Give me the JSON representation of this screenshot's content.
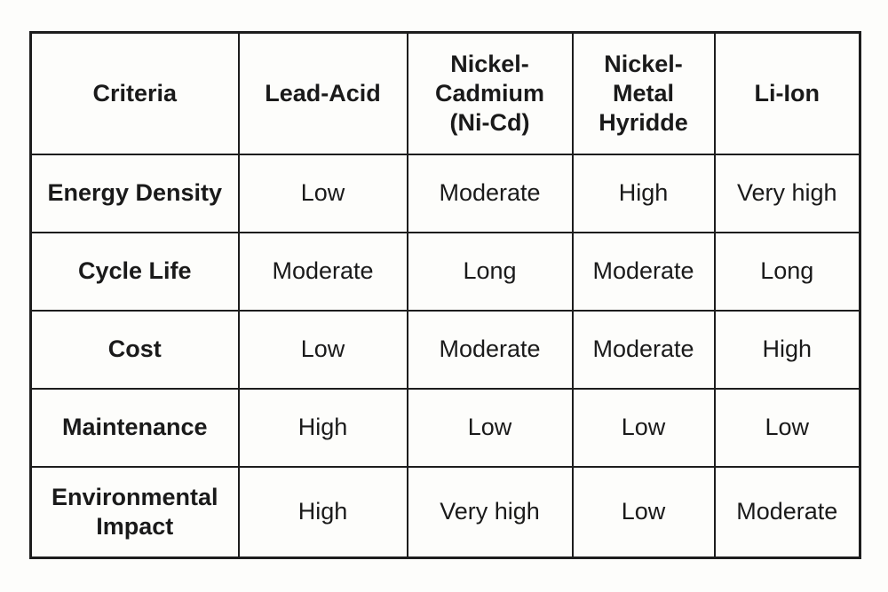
{
  "chart_data": {
    "type": "table",
    "title": "",
    "columns": [
      "Criteria",
      "Lead-Acid",
      "Nickel-Cadmium (Ni-Cd)",
      "Nickel-Metal Hyridde",
      "Li-Ion"
    ],
    "rows": [
      [
        "Energy Density",
        "Low",
        "Moderate",
        "High",
        "Very high"
      ],
      [
        "Cycle Life",
        "Moderate",
        "Long",
        "Moderate",
        "Long"
      ],
      [
        "Cost",
        "Low",
        "Moderate",
        "Moderate",
        "High"
      ],
      [
        "Maintenance",
        "High",
        "Low",
        "Low",
        "Low"
      ],
      [
        "Environmental Impact",
        "High",
        "Very high",
        "Low",
        "Moderate"
      ]
    ],
    "layout": {
      "header_bold": true,
      "criteria_column_bold": true,
      "grid": "all-borders"
    }
  },
  "colors": {
    "border": "#1d1d1d",
    "background": "#fdfdfb",
    "text": "#1a1a1a"
  }
}
